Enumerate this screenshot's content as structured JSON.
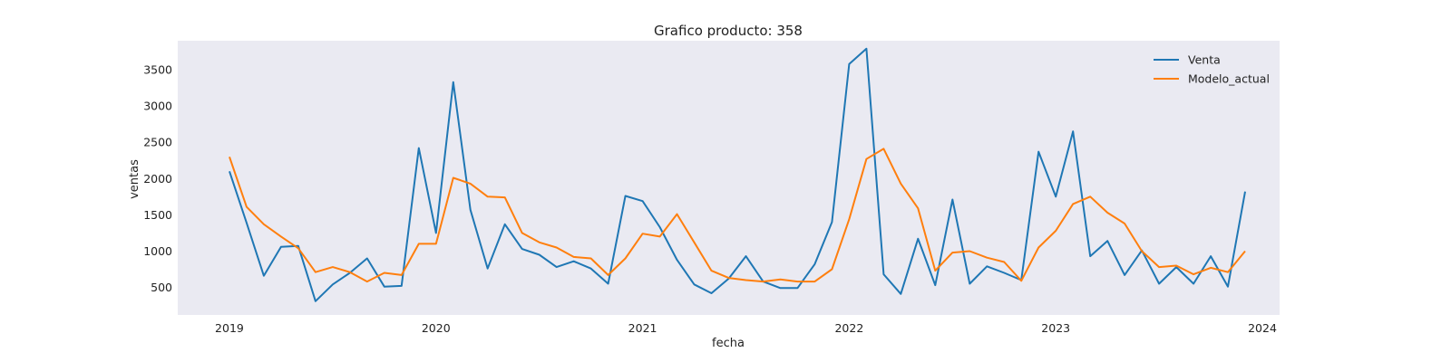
{
  "chart_data": {
    "type": "line",
    "title": "Grafico producto: 358",
    "xlabel": "fecha",
    "ylabel": "ventas",
    "x_start": "2019-01",
    "x_ticks": [
      "2019",
      "2020",
      "2021",
      "2022",
      "2023",
      "2024"
    ],
    "y_ticks": [
      500,
      1000,
      1500,
      2000,
      2500,
      3000,
      3500
    ],
    "xlim": [
      "2018-10",
      "2024-02"
    ],
    "ylim": [
      120,
      3900
    ],
    "grid": false,
    "legend_position": "top-right",
    "background": "#eaeaf2",
    "series": [
      {
        "name": "Venta",
        "color": "#1f77b4",
        "values": [
          2100,
          1390,
          660,
          1060,
          1070,
          310,
          540,
          700,
          900,
          510,
          520,
          2420,
          1250,
          3330,
          1570,
          760,
          1370,
          1030,
          950,
          780,
          860,
          760,
          550,
          1760,
          1690,
          1330,
          880,
          540,
          420,
          620,
          930,
          580,
          490,
          490,
          820,
          1400,
          3580,
          3790,
          680,
          410,
          1170,
          530,
          1710,
          550,
          790,
          700,
          600,
          2370,
          1750,
          2650,
          930,
          1140,
          670,
          1010,
          550,
          780,
          550,
          930,
          510,
          1820
        ]
      },
      {
        "name": "Modelo_actual",
        "color": "#ff7f0e",
        "values": [
          2300,
          1610,
          1370,
          1200,
          1040,
          710,
          780,
          710,
          580,
          700,
          670,
          1100,
          1100,
          2010,
          1930,
          1750,
          1740,
          1250,
          1120,
          1050,
          920,
          900,
          670,
          900,
          1240,
          1200,
          1510,
          1120,
          730,
          630,
          600,
          580,
          610,
          580,
          580,
          750,
          1440,
          2270,
          2410,
          1930,
          1590,
          730,
          980,
          1000,
          910,
          850,
          590,
          1050,
          1280,
          1650,
          1750,
          1530,
          1380,
          1000,
          780,
          800,
          680,
          770,
          710,
          1000
        ]
      }
    ]
  }
}
